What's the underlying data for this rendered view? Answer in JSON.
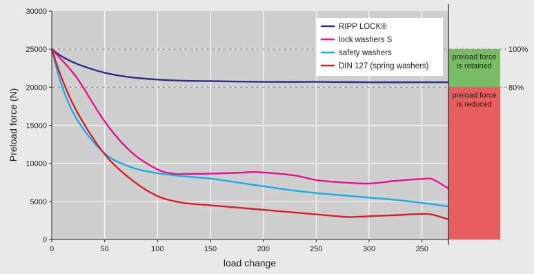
{
  "chart_data": {
    "type": "line",
    "xlabel": "load change",
    "ylabel": "Preload force (N)",
    "xlim": [
      0,
      375
    ],
    "ylim": [
      0,
      30000
    ],
    "x_ticks": [
      "0",
      "50",
      "100",
      "150",
      "200",
      "250",
      "300",
      "350"
    ],
    "y_ticks": [
      "0",
      "5000",
      "10000",
      "15000",
      "20000",
      "25000",
      "30000"
    ],
    "grid": true,
    "legend_position": "top-right",
    "series": [
      {
        "name": "RIPP LOCK®",
        "color": "#2b2f8a",
        "x": [
          0,
          10,
          25,
          50,
          75,
          100,
          125,
          150,
          200,
          250,
          300,
          350,
          375
        ],
        "y": [
          25000,
          24000,
          23000,
          21900,
          21300,
          21000,
          20850,
          20800,
          20700,
          20700,
          20650,
          20650,
          20650
        ]
      },
      {
        "name": "lock washers S",
        "color": "#e5138d",
        "x": [
          0,
          10,
          25,
          50,
          75,
          100,
          115,
          125,
          150,
          175,
          195,
          230,
          250,
          275,
          300,
          325,
          350,
          360,
          375
        ],
        "y": [
          25000,
          23500,
          21000,
          15500,
          11500,
          9200,
          8650,
          8600,
          8650,
          8750,
          8850,
          8400,
          7800,
          7500,
          7350,
          7700,
          7950,
          7900,
          6700
        ]
      },
      {
        "name": "safety washers",
        "color": "#19ace6",
        "x": [
          0,
          10,
          25,
          50,
          75,
          100,
          125,
          150,
          175,
          200,
          225,
          250,
          275,
          300,
          325,
          350,
          375
        ],
        "y": [
          25000,
          20000,
          15500,
          11300,
          9500,
          8700,
          8300,
          8000,
          7500,
          7000,
          6500,
          6100,
          5800,
          5500,
          5200,
          4800,
          4350
        ]
      },
      {
        "name": "DIN 127 (spring washers)",
        "color": "#d61f26",
        "x": [
          0,
          10,
          25,
          50,
          75,
          100,
          125,
          150,
          175,
          200,
          225,
          250,
          275,
          283,
          300,
          325,
          350,
          360,
          375
        ],
        "y": [
          25000,
          21000,
          16500,
          11200,
          7900,
          5700,
          4800,
          4500,
          4200,
          3900,
          3600,
          3300,
          3000,
          2950,
          3050,
          3200,
          3350,
          3250,
          2650
        ]
      }
    ],
    "reference_lines": [
      {
        "y": 25000,
        "label": "100%"
      },
      {
        "y": 20000,
        "label": "80%"
      }
    ],
    "zones": [
      {
        "from": 20000,
        "to": 25000,
        "color": "#78bd63",
        "label_lines": [
          "preload force",
          "is retained"
        ]
      },
      {
        "from": 0,
        "to": 20000,
        "color": "#e85d5d",
        "label_lines": [
          "preload force",
          "is reduced"
        ]
      }
    ]
  }
}
